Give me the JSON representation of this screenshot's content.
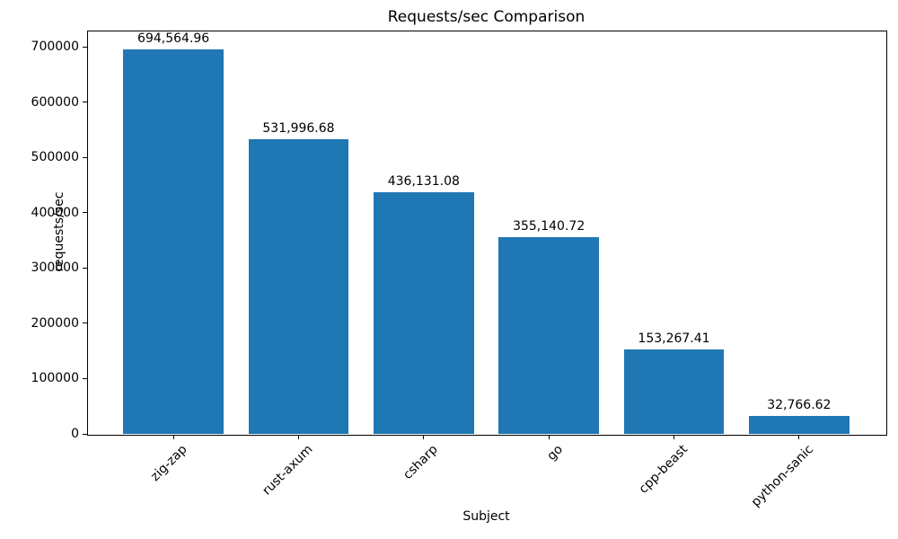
{
  "chart_data": {
    "type": "bar",
    "title": "Requests/sec Comparison",
    "xlabel": "Subject",
    "ylabel": "requests/sec",
    "categories": [
      "zig-zap",
      "rust-axum",
      "csharp",
      "go",
      "cpp-beast",
      "python-sanic"
    ],
    "values": [
      694564.96,
      531996.68,
      436131.08,
      355140.72,
      153267.41,
      32766.62
    ],
    "value_labels": [
      "694,564.96",
      "531,996.68",
      "436,131.08",
      "355,140.72",
      "153,267.41",
      "32,766.62"
    ],
    "yticks": [
      0,
      100000,
      200000,
      300000,
      400000,
      500000,
      600000,
      700000
    ],
    "ytick_labels": [
      "0",
      "100000",
      "200000",
      "300000",
      "400000",
      "500000",
      "600000",
      "700000"
    ],
    "ylim": [
      0,
      729293
    ],
    "bar_color": "#1f77b4",
    "grid": false,
    "legend": null,
    "x_tick_rotation": 45
  }
}
